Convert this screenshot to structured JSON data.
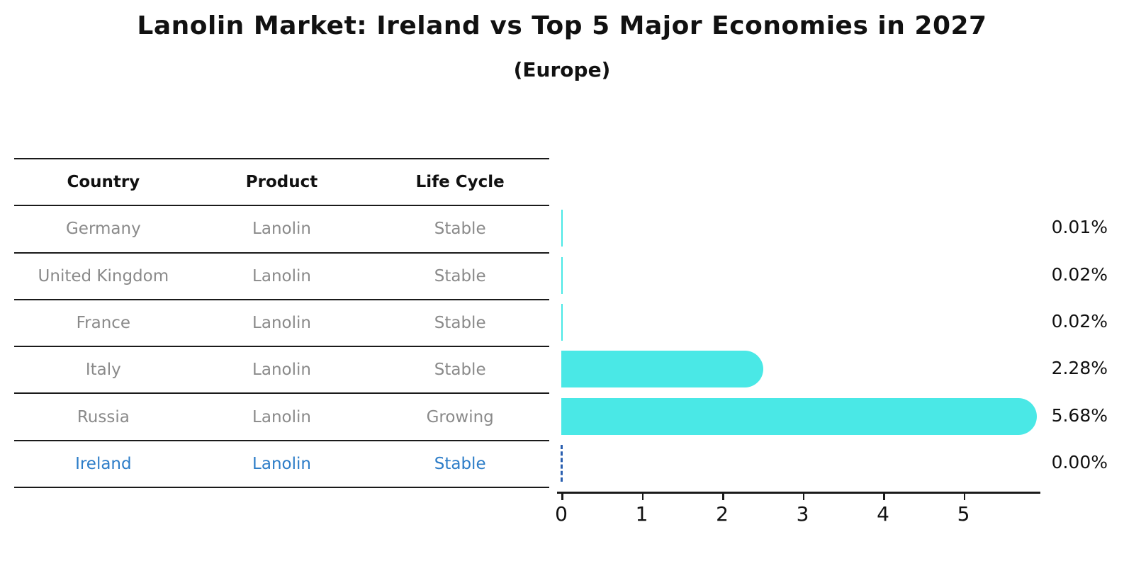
{
  "title": "Lanolin Market: Ireland vs Top 5 Major Economies in 2027",
  "subtitle": "(Europe)",
  "table": {
    "headers": [
      "Country",
      "Product",
      "Life Cycle"
    ],
    "rows": [
      {
        "country": "Germany",
        "product": "Lanolin",
        "life_cycle": "Stable",
        "highlight": false
      },
      {
        "country": "United Kingdom",
        "product": "Lanolin",
        "life_cycle": "Stable",
        "highlight": false
      },
      {
        "country": "France",
        "product": "Lanolin",
        "life_cycle": "Stable",
        "highlight": false
      },
      {
        "country": "Italy",
        "product": "Lanolin",
        "life_cycle": "Stable",
        "highlight": false
      },
      {
        "country": "Russia",
        "product": "Lanolin",
        "life_cycle": "Growing",
        "highlight": false
      },
      {
        "country": "Ireland",
        "product": "Lanolin",
        "life_cycle": "Stable",
        "highlight": true
      }
    ]
  },
  "chart_data": {
    "type": "bar",
    "orientation": "horizontal",
    "title": "Lanolin Market: Ireland vs Top 5 Major Economies in 2027",
    "subtitle": "(Europe)",
    "categories": [
      "Germany",
      "United Kingdom",
      "France",
      "Italy",
      "Russia",
      "Ireland"
    ],
    "values": [
      0.01,
      0.02,
      0.02,
      2.28,
      5.68,
      0.0
    ],
    "value_labels": [
      "0.01%",
      "0.02%",
      "0.02%",
      "2.28%",
      "5.68%",
      "0.00%"
    ],
    "x_ticks": [
      "0",
      "1",
      "2",
      "3",
      "4",
      "5"
    ],
    "xlim": [
      0,
      6
    ],
    "grid": false,
    "legend": "none",
    "highlight_index": 5,
    "bar_color": "#4ae8e6",
    "highlight_marker_color": "#2a5fb0",
    "highlight_text_color": "#2d7dc8",
    "row_text_color": "#8a8a8a"
  }
}
